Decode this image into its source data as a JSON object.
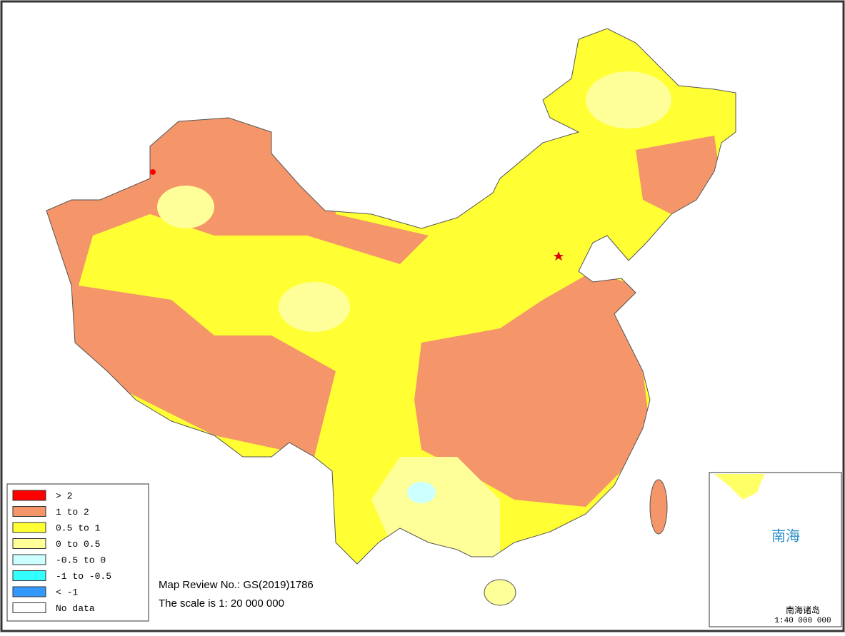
{
  "legend": [
    {
      "label": "> 2",
      "color": "#ff0000"
    },
    {
      "label": "1 to 2",
      "color": "#f4956a"
    },
    {
      "label": "0.5 to 1",
      "color": "#ffff33"
    },
    {
      "label": "0 to 0.5",
      "color": "#ffff99"
    },
    {
      "label": "-0.5 to 0",
      "color": "#ccffff"
    },
    {
      "label": "-1 to -0.5",
      "color": "#33ffff"
    },
    {
      "label": "< -1",
      "color": "#3399ff"
    },
    {
      "label": "No data",
      "color": "#ffffff"
    }
  ],
  "notes": {
    "review": "Map Review No.: GS(2019)1786",
    "scale": "The scale is 1: 20 000 000"
  },
  "inset": {
    "sea": "南海",
    "islands": "南海诸岛",
    "scale": "1:40 000 000"
  }
}
